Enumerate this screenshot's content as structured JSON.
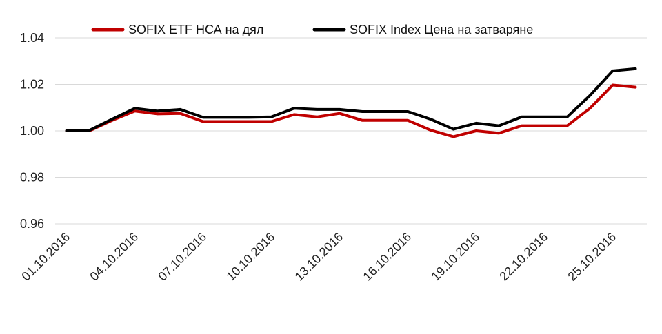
{
  "chart_data": {
    "type": "line",
    "title": "",
    "xlabel": "",
    "ylabel": "",
    "ylim": [
      0.96,
      1.04
    ],
    "yticks": [
      0.96,
      0.98,
      1.0,
      1.02,
      1.04
    ],
    "ytick_labels": [
      "0.96",
      "0.98",
      "1.00",
      "1.02",
      "1.04"
    ],
    "x": [
      "01.10.2016",
      "02.10.2016",
      "03.10.2016",
      "04.10.2016",
      "05.10.2016",
      "06.10.2016",
      "07.10.2016",
      "08.10.2016",
      "09.10.2016",
      "10.10.2016",
      "11.10.2016",
      "12.10.2016",
      "13.10.2016",
      "14.10.2016",
      "15.10.2016",
      "16.10.2016",
      "17.10.2016",
      "18.10.2016",
      "19.10.2016",
      "20.10.2016",
      "21.10.2016",
      "22.10.2016",
      "23.10.2016",
      "24.10.2016",
      "25.10.2016",
      "26.10.2016"
    ],
    "xtick_labels": [
      "01.10.2016",
      "04.10.2016",
      "07.10.2016",
      "10.10.2016",
      "13.10.2016",
      "16.10.2016",
      "19.10.2016",
      "22.10.2016",
      "25.10.2016"
    ],
    "grid": true,
    "legend_position": "top-center",
    "series": [
      {
        "name": "SOFIX ETF НСА на дял",
        "color": "#c00000",
        "values": [
          1.0,
          1.0,
          1.0045,
          1.0085,
          1.0073,
          1.0075,
          1.004,
          1.004,
          1.004,
          1.004,
          1.007,
          1.006,
          1.0075,
          1.0045,
          1.0045,
          1.0045,
          1.0003,
          0.9975,
          1.0,
          0.999,
          1.0022,
          1.0022,
          1.0022,
          1.0097,
          1.0197,
          1.0188
        ]
      },
      {
        "name": "SOFIX Index Цена на затваряне",
        "color": "#000000",
        "values": [
          1.0,
          1.0002,
          1.005,
          1.0097,
          1.0085,
          1.0092,
          1.0058,
          1.0058,
          1.0058,
          1.006,
          1.0097,
          1.0092,
          1.0092,
          1.0083,
          1.0083,
          1.0083,
          1.005,
          1.0007,
          1.0033,
          1.0022,
          1.006,
          1.006,
          1.006,
          1.0152,
          1.0258,
          1.0267
        ]
      }
    ]
  }
}
